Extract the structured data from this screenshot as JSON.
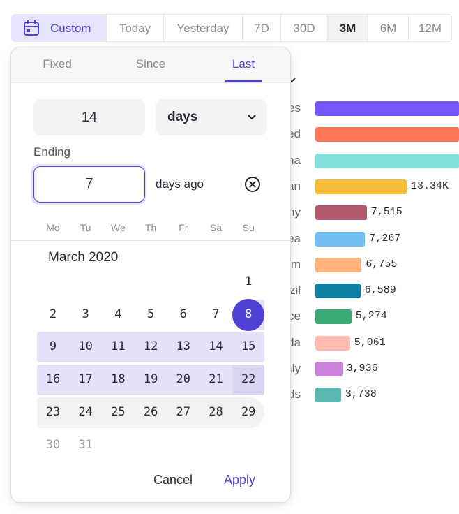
{
  "range_tabs": [
    "Custom",
    "Today",
    "Yesterday",
    "7D",
    "30D",
    "3M",
    "6M",
    "12M"
  ],
  "background": {
    "bars": [
      {
        "label": "es",
        "color": "#7856ff"
      },
      {
        "label": "ed",
        "color": "#ff7557"
      },
      {
        "label": "na",
        "color": "#80e1d9"
      },
      {
        "label": "an",
        "value": 13340,
        "value_label": "13.34K",
        "color": "#f8bc3b"
      },
      {
        "label": "ny",
        "value": 7515,
        "value_label": "7,515",
        "color": "#b2596e"
      },
      {
        "label": "ea",
        "value": 7267,
        "value_label": "7,267",
        "color": "#72bef4"
      },
      {
        "label": "m",
        "value": 6755,
        "value_label": "6,755",
        "color": "#ffb27a"
      },
      {
        "label": "zil",
        "value": 6589,
        "value_label": "6,589",
        "color": "#0d7ea0"
      },
      {
        "label": "ce",
        "value": 5274,
        "value_label": "5,274",
        "color": "#3ba974"
      },
      {
        "label": "da",
        "value": 5061,
        "value_label": "5,061",
        "color": "#febbb2"
      },
      {
        "label": "aly",
        "value": 3936,
        "value_label": "3,936",
        "color": "#cb80dc"
      },
      {
        "label": "ds",
        "value": 3738,
        "value_label": "3,738",
        "color": "#5cb7af"
      }
    ]
  },
  "popover": {
    "tabs": [
      "Fixed",
      "Since",
      "Last"
    ],
    "count": 14,
    "unit": "days",
    "ending_label": "Ending",
    "ending_value": 7,
    "ending_suffix": "days ago",
    "weekdays": [
      "Mo",
      "Tu",
      "We",
      "Th",
      "Fr",
      "Sa",
      "Su"
    ],
    "month": "March 2020",
    "weeks": [
      [
        null,
        null,
        null,
        null,
        null,
        null,
        1
      ],
      [
        2,
        3,
        4,
        5,
        6,
        7,
        8
      ],
      [
        9,
        10,
        11,
        12,
        13,
        14,
        15
      ],
      [
        16,
        17,
        18,
        19,
        20,
        21,
        22
      ],
      [
        23,
        24,
        25,
        26,
        27,
        28,
        29
      ],
      [
        30,
        31,
        null,
        null,
        null,
        null,
        null
      ]
    ],
    "cancel": "Cancel",
    "apply": "Apply"
  }
}
